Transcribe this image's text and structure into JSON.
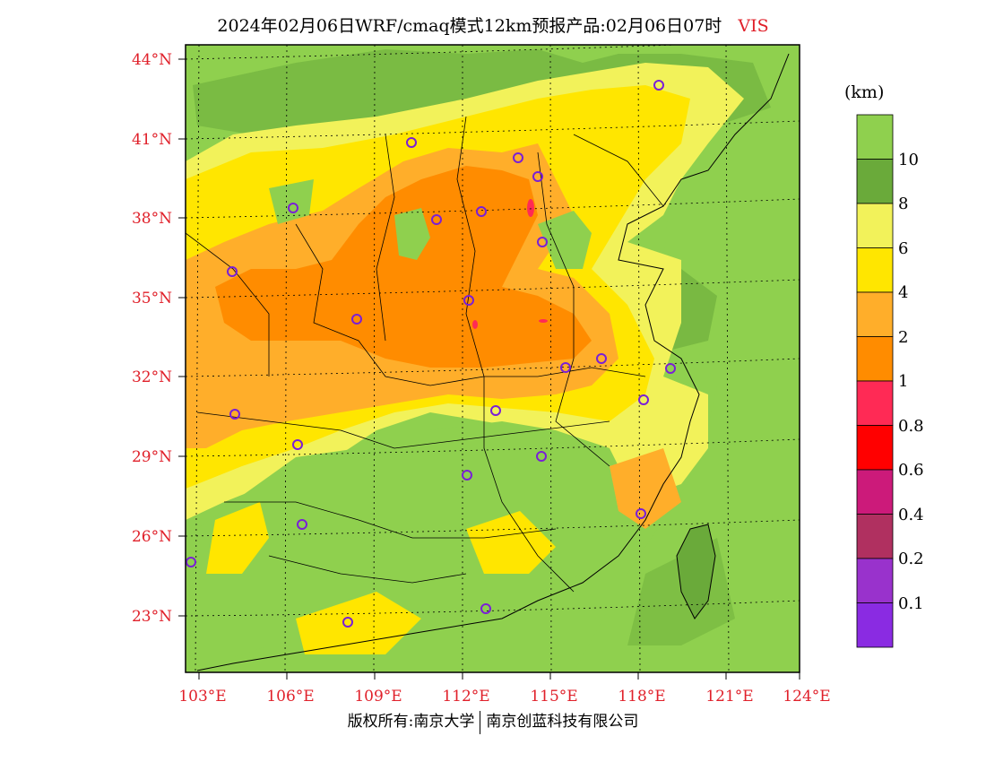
{
  "title": {
    "main": "2024年02月06日WRF/cmaq模式12km预报产品:02月06日07时",
    "variable": "VIS"
  },
  "colorbar": {
    "unit": "(km)",
    "labels": [
      "10",
      "8",
      "6",
      "4",
      "2",
      "1",
      "0.8",
      "0.6",
      "0.4",
      "0.2",
      "0.1"
    ],
    "colors": [
      "#8fd04e",
      "#6aaa3a",
      "#f2f25a",
      "#ffe600",
      "#ffae2a",
      "#ff8c00",
      "#ff2a55",
      "#ff0000",
      "#cc1a7a",
      "#b03060",
      "#9932cc",
      "#8a2be2"
    ]
  },
  "lat_ticks": [
    "44°N",
    "41°N",
    "38°N",
    "35°N",
    "32°N",
    "29°N",
    "26°N",
    "23°N"
  ],
  "lon_ticks": [
    "103°E",
    "106°E",
    "109°E",
    "112°E",
    "115°E",
    "118°E",
    "121°E",
    "124°E"
  ],
  "footer": {
    "left": "版权所有:南京大学",
    "right": "南京创蓝科技有限公司"
  }
}
